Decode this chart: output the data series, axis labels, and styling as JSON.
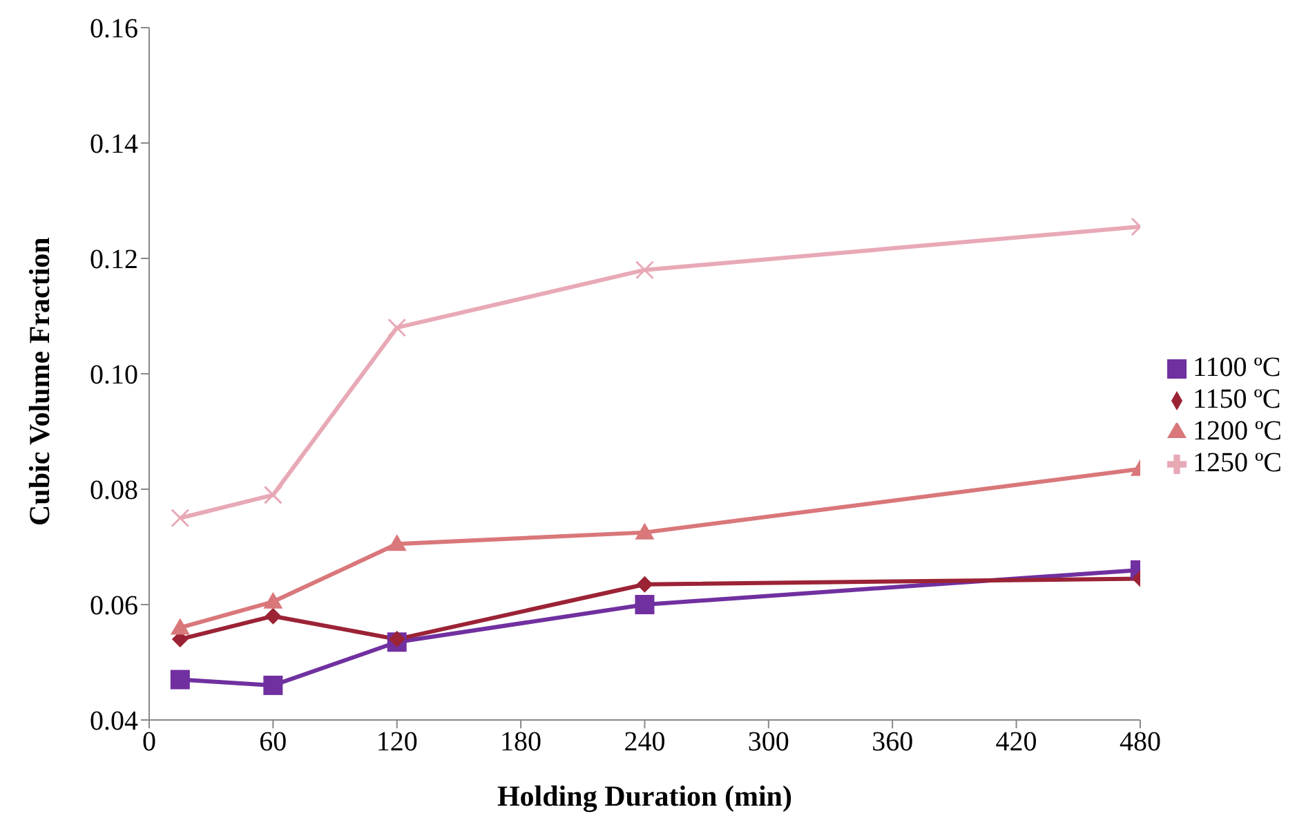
{
  "chart_data": {
    "type": "line",
    "xlabel": "Holding Duration (min)",
    "ylabel": "Cubic Volume Fraction",
    "x": [
      15,
      60,
      120,
      240,
      480
    ],
    "series": [
      {
        "name": "1100 ºC",
        "color": "#7030a0",
        "marker": "square",
        "values": [
          0.047,
          0.046,
          0.0535,
          0.06,
          0.066
        ]
      },
      {
        "name": "1150 ºC",
        "color": "#9b2335",
        "marker": "diamond",
        "values": [
          0.054,
          0.058,
          0.054,
          0.0635,
          0.0645
        ]
      },
      {
        "name": "1200 ºC",
        "color": "#d9777a",
        "marker": "triangle",
        "values": [
          0.056,
          0.0605,
          0.0705,
          0.0725,
          0.0835
        ]
      },
      {
        "name": "1250 ºC",
        "color": "#e8a9b6",
        "marker": "cross",
        "values": [
          0.075,
          0.079,
          0.108,
          0.118,
          0.1255
        ]
      }
    ],
    "xlim": [
      0,
      480
    ],
    "xticks": [
      0,
      60,
      120,
      180,
      240,
      300,
      360,
      420,
      480
    ],
    "ylim": [
      0.04,
      0.16
    ],
    "yticks": [
      {
        "value": 0.04,
        "label": "0.04"
      },
      {
        "value": 0.06,
        "label": "0.06"
      },
      {
        "value": 0.08,
        "label": "0.08"
      },
      {
        "value": 0.1,
        "label": "0.10"
      },
      {
        "value": 0.12,
        "label": "0.12"
      },
      {
        "value": 0.14,
        "label": "0.14"
      },
      {
        "value": 0.16,
        "label": "0.16"
      }
    ],
    "grid": false,
    "legend": "right"
  }
}
